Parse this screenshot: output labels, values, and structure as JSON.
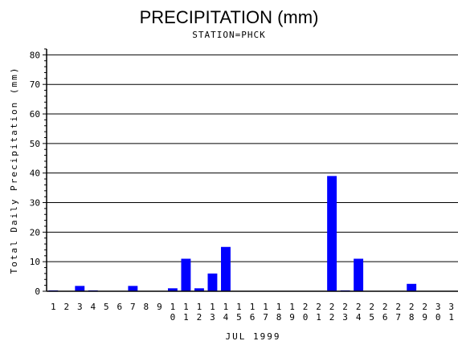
{
  "chart_data": {
    "type": "bar",
    "title": "PRECIPITATION (mm)",
    "subtitle": "STATION=PHCK",
    "xlabel": "JUL 1999",
    "ylabel": "Total Daily Precipitation (mm)",
    "categories": [
      "1",
      "2",
      "3",
      "4",
      "5",
      "6",
      "7",
      "8",
      "9",
      "10",
      "11",
      "12",
      "13",
      "14",
      "15",
      "16",
      "17",
      "18",
      "19",
      "20",
      "21",
      "22",
      "23",
      "24",
      "25",
      "26",
      "27",
      "28",
      "29",
      "30",
      "31"
    ],
    "values": [
      0.3,
      0,
      1.8,
      0.3,
      0,
      0,
      1.8,
      0,
      0,
      1.0,
      11.0,
      1.0,
      6.0,
      15.0,
      0,
      0,
      0,
      0,
      0,
      0,
      0,
      39.0,
      0.3,
      11.0,
      0,
      0,
      0,
      2.5,
      0,
      0,
      0
    ],
    "ylim": [
      0,
      82
    ],
    "yticks": [
      0,
      10,
      20,
      30,
      40,
      50,
      60,
      70,
      80
    ],
    "grid": true,
    "bar_color": "#0000ff"
  }
}
